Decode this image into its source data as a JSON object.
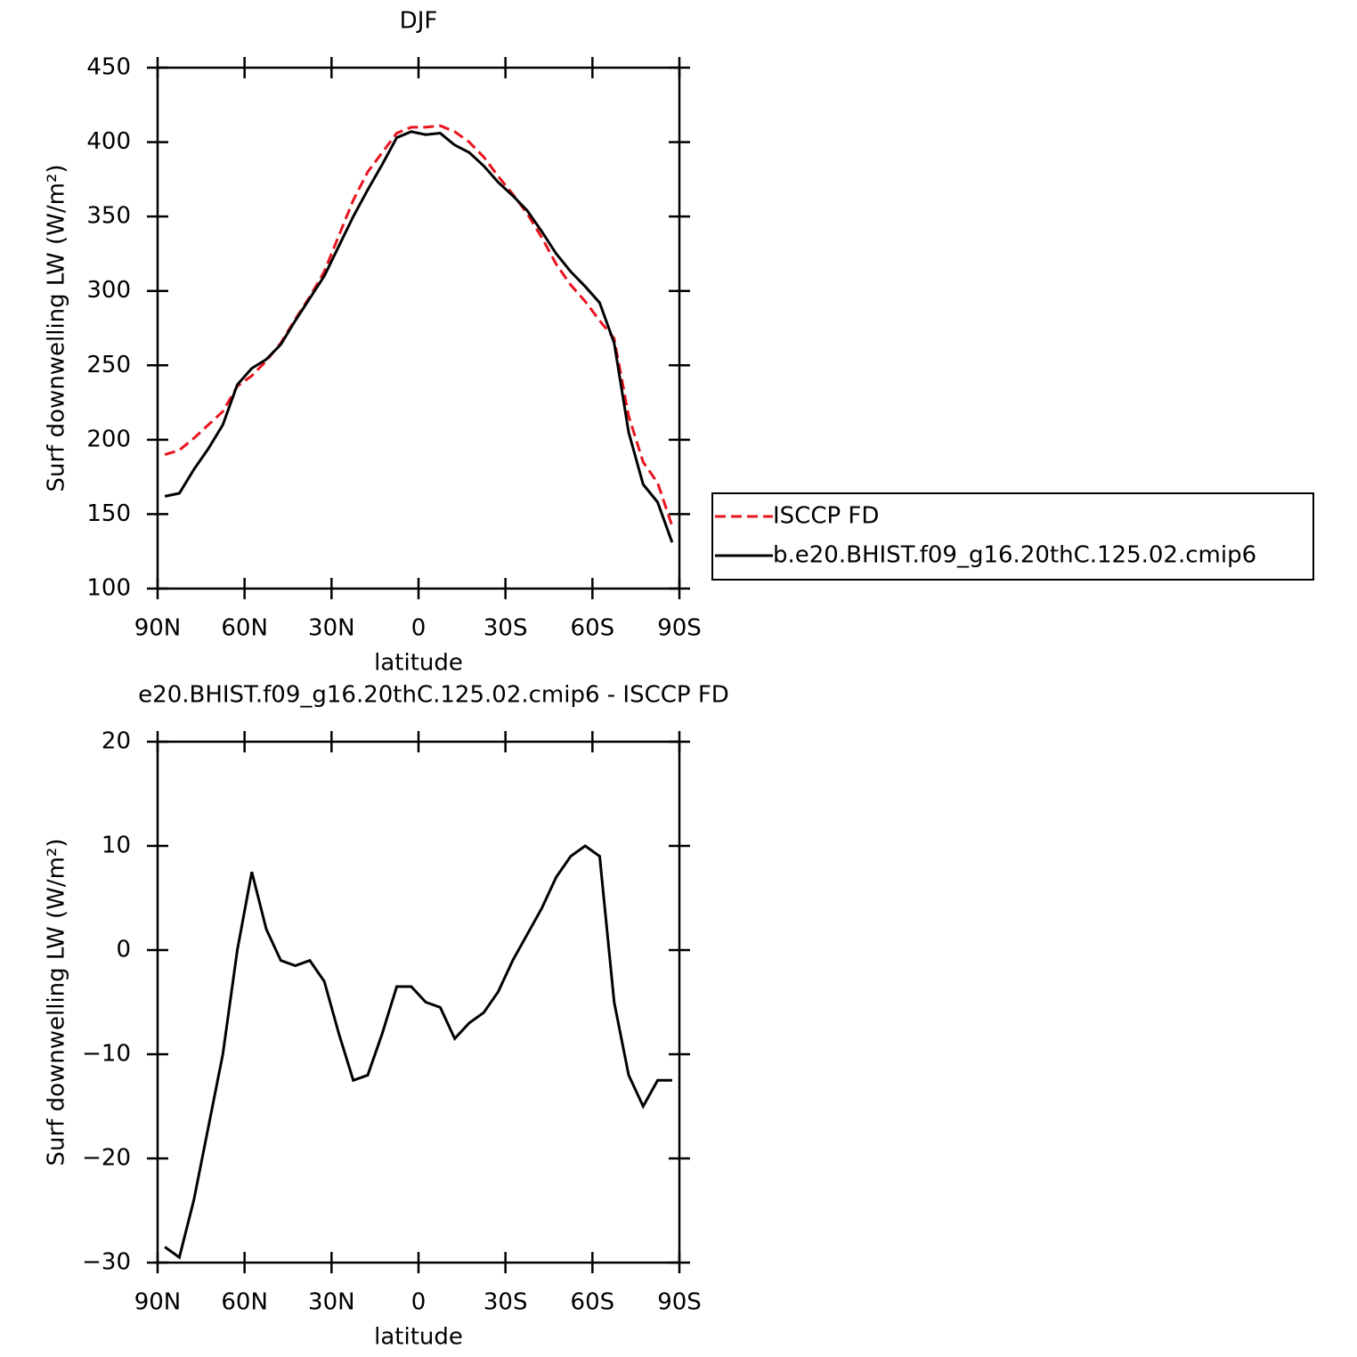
{
  "chart_data": [
    {
      "type": "line",
      "title": "DJF",
      "xlabel": "latitude",
      "ylabel": "Surf downwelling LW (W/m²)",
      "x": [
        87.5,
        82.5,
        77.5,
        72.5,
        67.5,
        62.5,
        57.5,
        52.5,
        47.5,
        42.5,
        37.5,
        32.5,
        27.5,
        22.5,
        17.5,
        12.5,
        7.5,
        2.5,
        -2.5,
        -7.5,
        -12.5,
        -17.5,
        -22.5,
        -27.5,
        -32.5,
        -37.5,
        -42.5,
        -47.5,
        -52.5,
        -57.5,
        -62.5,
        -67.5,
        -72.5,
        -77.5,
        -82.5,
        -87.5
      ],
      "series": [
        {
          "name": "ISCCP FD",
          "color": "#e8141e",
          "dash": true,
          "values": [
            190,
            193,
            201,
            210,
            219,
            236,
            243,
            253,
            265,
            281,
            296,
            313,
            337,
            361,
            380,
            393,
            406,
            410,
            410,
            411,
            407,
            400,
            390,
            377,
            365,
            352,
            336,
            318,
            304,
            293,
            280,
            268,
            216,
            185,
            171,
            142
          ]
        },
        {
          "name": "b.e20.BHIST.f09_g16.20thC.125.02.cmip6",
          "color": "#000000",
          "dash": false,
          "values": [
            162,
            164,
            180,
            194,
            210,
            237,
            248,
            254,
            264,
            280,
            295,
            310,
            330,
            350,
            368,
            385,
            403,
            407,
            405,
            406,
            398,
            393,
            384,
            373,
            364,
            354,
            340,
            325,
            313,
            303,
            292,
            265,
            205,
            170,
            158,
            131
          ]
        }
      ],
      "xlim": [
        90,
        -90
      ],
      "xticks": [
        {
          "value": 90,
          "label": "90N"
        },
        {
          "value": 60,
          "label": "60N"
        },
        {
          "value": 30,
          "label": "30N"
        },
        0,
        {
          "value": -30,
          "label": "30S"
        },
        {
          "value": -60,
          "label": "60S"
        },
        {
          "value": -90,
          "label": "90S"
        }
      ],
      "ylim": [
        100,
        450
      ],
      "yticks": [
        100,
        150,
        200,
        250,
        300,
        350,
        400,
        450
      ],
      "legend": "right"
    },
    {
      "type": "line",
      "title": "e20.BHIST.f09_g16.20thC.125.02.cmip6 - ISCCP FD",
      "xlabel": "latitude",
      "ylabel": "Surf downwelling LW (W/m²)",
      "x": [
        87.5,
        82.5,
        77.5,
        72.5,
        67.5,
        62.5,
        57.5,
        52.5,
        47.5,
        42.5,
        37.5,
        32.5,
        27.5,
        22.5,
        17.5,
        12.5,
        7.5,
        2.5,
        -2.5,
        -7.5,
        -12.5,
        -17.5,
        -22.5,
        -27.5,
        -32.5,
        -37.5,
        -42.5,
        -47.5,
        -52.5,
        -57.5,
        -62.5,
        -67.5,
        -72.5,
        -77.5,
        -82.5,
        -87.5
      ],
      "series": [
        {
          "color": "#000000",
          "dash": false,
          "values": [
            -28.5,
            -29.5,
            -24,
            -17,
            -10,
            0,
            7.5,
            2,
            -1,
            -1.5,
            -1,
            -3,
            -8,
            -12.5,
            -12,
            -8,
            -3.5,
            -3.5,
            -5,
            -5.5,
            -8.5,
            -7,
            -6,
            -4,
            -1,
            1.5,
            4,
            7,
            9,
            10,
            9,
            -5,
            -12,
            -15,
            -12.5,
            -12.5
          ]
        }
      ],
      "xlim": [
        90,
        -90
      ],
      "xticks": [
        {
          "value": 90,
          "label": "90N"
        },
        {
          "value": 60,
          "label": "60N"
        },
        {
          "value": 30,
          "label": "30N"
        },
        0,
        {
          "value": -30,
          "label": "30S"
        },
        {
          "value": -60,
          "label": "60S"
        },
        {
          "value": -90,
          "label": "90S"
        }
      ],
      "ylim": [
        -30,
        20
      ],
      "yticks": [
        {
          "value": -30,
          "label": "−30"
        },
        {
          "value": -20,
          "label": "−20"
        },
        {
          "value": -10,
          "label": "−10"
        },
        0,
        10,
        20
      ]
    }
  ]
}
